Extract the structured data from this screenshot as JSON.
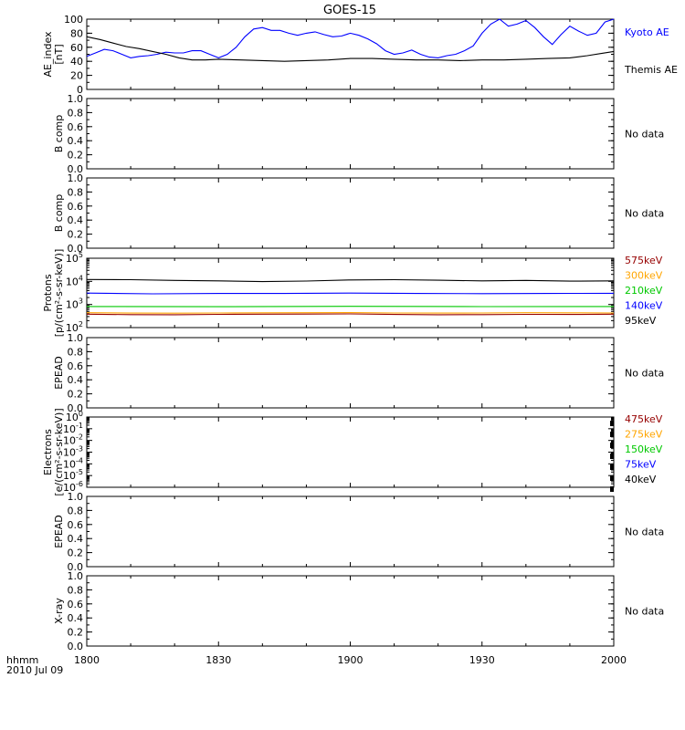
{
  "title": "GOES-15",
  "x_axis": {
    "range": [
      "18:00",
      "20:00"
    ],
    "ticks": [
      "1800",
      "1830",
      "1900",
      "1930",
      "2000"
    ],
    "unit_label": "hhmm",
    "date_label": "2010 Jul 09"
  },
  "chart_data": [
    {
      "type": "line",
      "ylabel": [
        "AE_index",
        "[nT]"
      ],
      "ylim": [
        0,
        100
      ],
      "scale": "linear",
      "yticks": [
        "0",
        "20",
        "40",
        "60",
        "80",
        "100"
      ],
      "minor_step": 10,
      "series": [
        {
          "name": "Kyoto AE",
          "color": "#0000ff",
          "t": [
            0,
            2,
            4,
            6,
            8,
            10,
            12,
            14,
            16,
            18,
            20,
            22,
            24,
            26,
            28,
            30,
            32,
            34,
            36,
            38,
            40,
            42,
            44,
            46,
            48,
            50,
            52,
            54,
            56,
            58,
            60,
            62,
            64,
            66,
            68,
            70,
            72,
            74,
            76,
            78,
            80,
            82,
            84,
            86,
            88,
            90,
            92,
            94,
            96,
            98,
            100,
            102,
            104,
            106,
            108,
            110,
            112,
            114,
            116,
            118,
            120
          ],
          "values": [
            47,
            52,
            57,
            55,
            50,
            45,
            47,
            48,
            50,
            53,
            52,
            52,
            55,
            55,
            50,
            45,
            50,
            60,
            75,
            86,
            88,
            84,
            84,
            80,
            77,
            80,
            82,
            78,
            75,
            76,
            80,
            77,
            72,
            65,
            55,
            50,
            52,
            56,
            50,
            46,
            45,
            48,
            50,
            55,
            62,
            80,
            93,
            100,
            90,
            93,
            98,
            88,
            75,
            64,
            78,
            90,
            83,
            77,
            80,
            96,
            100
          ]
        },
        {
          "name": "Themis AE",
          "color": "#000000",
          "t": [
            0,
            3,
            6,
            9,
            12,
            15,
            18,
            21,
            24,
            27,
            30,
            35,
            40,
            45,
            50,
            55,
            60,
            65,
            70,
            75,
            80,
            85,
            90,
            95,
            100,
            105,
            110,
            114,
            117,
            120
          ],
          "values": [
            75,
            71,
            66,
            61,
            58,
            54,
            50,
            45,
            42,
            42,
            43,
            42,
            41,
            40,
            41,
            42,
            44,
            44,
            43,
            42,
            42,
            41,
            42,
            42,
            43,
            44,
            45,
            48,
            51,
            54
          ]
        }
      ]
    },
    {
      "type": "line",
      "ylabel": [
        "B comp"
      ],
      "ylim": [
        0,
        1
      ],
      "scale": "linear",
      "yticks": [
        "0.0",
        "0.2",
        "0.4",
        "0.6",
        "0.8",
        "1.0"
      ],
      "minor_step": 0.1,
      "series": [],
      "annotation": "No data"
    },
    {
      "type": "line",
      "ylabel": [
        "B comp"
      ],
      "ylim": [
        0,
        1
      ],
      "scale": "linear",
      "yticks": [
        "0.0",
        "0.2",
        "0.4",
        "0.6",
        "0.8",
        "1.0"
      ],
      "minor_step": 0.1,
      "series": [],
      "annotation": "No data"
    },
    {
      "type": "line",
      "ylabel": [
        "Protons",
        "[p/(cm²-s-sr-keV)]"
      ],
      "ylim": [
        100,
        100000
      ],
      "scale": "log",
      "yticks": [
        {
          "base": "10",
          "exp": "2",
          "value": 100
        },
        {
          "base": "10",
          "exp": "3",
          "value": 1000
        },
        {
          "base": "10",
          "exp": "4",
          "value": 10000
        },
        {
          "base": "10",
          "exp": "5",
          "value": 100000
        }
      ],
      "series": [
        {
          "name": "95keV",
          "color": "#000000",
          "t": [
            0,
            10,
            20,
            30,
            40,
            50,
            60,
            70,
            80,
            90,
            100,
            110,
            120
          ],
          "values": [
            12000,
            11800,
            11000,
            10500,
            9800,
            10300,
            11500,
            11800,
            11200,
            10500,
            11000,
            10200,
            10500
          ]
        },
        {
          "name": "140keV",
          "color": "#0000ff",
          "t": [
            0,
            15,
            30,
            45,
            60,
            75,
            90,
            105,
            120
          ],
          "values": [
            3100,
            2900,
            3000,
            3000,
            3100,
            3000,
            2950,
            3000,
            3050
          ]
        },
        {
          "name": "210keV",
          "color": "#00c800",
          "t": [
            0,
            30,
            60,
            90,
            120
          ],
          "values": [
            820,
            800,
            830,
            810,
            820
          ]
        },
        {
          "name": "300keV",
          "color": "#ffa500",
          "t": [
            0,
            10,
            20,
            30,
            40,
            50,
            60,
            70,
            80,
            90,
            100,
            110,
            120
          ],
          "values": [
            440,
            425,
            420,
            430,
            435,
            440,
            445,
            430,
            425,
            430,
            440,
            435,
            430
          ]
        },
        {
          "name": "575keV",
          "color": "#960000",
          "t": [
            0,
            10,
            20,
            30,
            40,
            50,
            60,
            70,
            80,
            90,
            100,
            110,
            120
          ],
          "values": [
            380,
            365,
            360,
            375,
            380,
            385,
            390,
            370,
            360,
            365,
            375,
            370,
            380
          ]
        }
      ]
    },
    {
      "type": "line",
      "ylabel": [
        "EPEAD"
      ],
      "ylim": [
        0,
        1
      ],
      "scale": "linear",
      "yticks": [
        "0.0",
        "0.2",
        "0.4",
        "0.6",
        "0.8",
        "1.0"
      ],
      "minor_step": 0.1,
      "series": [],
      "annotation": "No data"
    },
    {
      "type": "line",
      "ylabel": [
        "Electrons",
        "[e/(cm²-s-sr-keV)]"
      ],
      "ylim": [
        1e-06,
        1
      ],
      "scale": "log",
      "yticks": [
        {
          "base": "10",
          "exp": "-6",
          "value": 1e-06
        },
        {
          "base": "10",
          "exp": "-5",
          "value": 1e-05
        },
        {
          "base": "10",
          "exp": "-4",
          "value": 0.0001
        },
        {
          "base": "10",
          "exp": "-3",
          "value": 0.001
        },
        {
          "base": "10",
          "exp": "-2",
          "value": 0.01
        },
        {
          "base": "10",
          "exp": "-1",
          "value": 0.1
        },
        {
          "base": "10",
          "exp": "0",
          "value": 1
        }
      ],
      "series": [],
      "legend": [
        {
          "name": "475keV",
          "color": "#960000"
        },
        {
          "name": "275keV",
          "color": "#ffa500"
        },
        {
          "name": "150keV",
          "color": "#00c800"
        },
        {
          "name": "75keV",
          "color": "#0000ff"
        },
        {
          "name": "40keV",
          "color": "#000000"
        }
      ]
    },
    {
      "type": "line",
      "ylabel": [
        "EPEAD"
      ],
      "ylim": [
        0,
        1
      ],
      "scale": "linear",
      "yticks": [
        "0.0",
        "0.2",
        "0.4",
        "0.6",
        "0.8",
        "1.0"
      ],
      "minor_step": 0.1,
      "series": [],
      "annotation": "No data"
    },
    {
      "type": "line",
      "ylabel": [
        "X-ray"
      ],
      "ylim": [
        0,
        1
      ],
      "scale": "linear",
      "yticks": [
        "0.0",
        "0.2",
        "0.4",
        "0.6",
        "0.8",
        "1.0"
      ],
      "minor_step": 0.1,
      "series": [],
      "annotation": "No data"
    }
  ]
}
